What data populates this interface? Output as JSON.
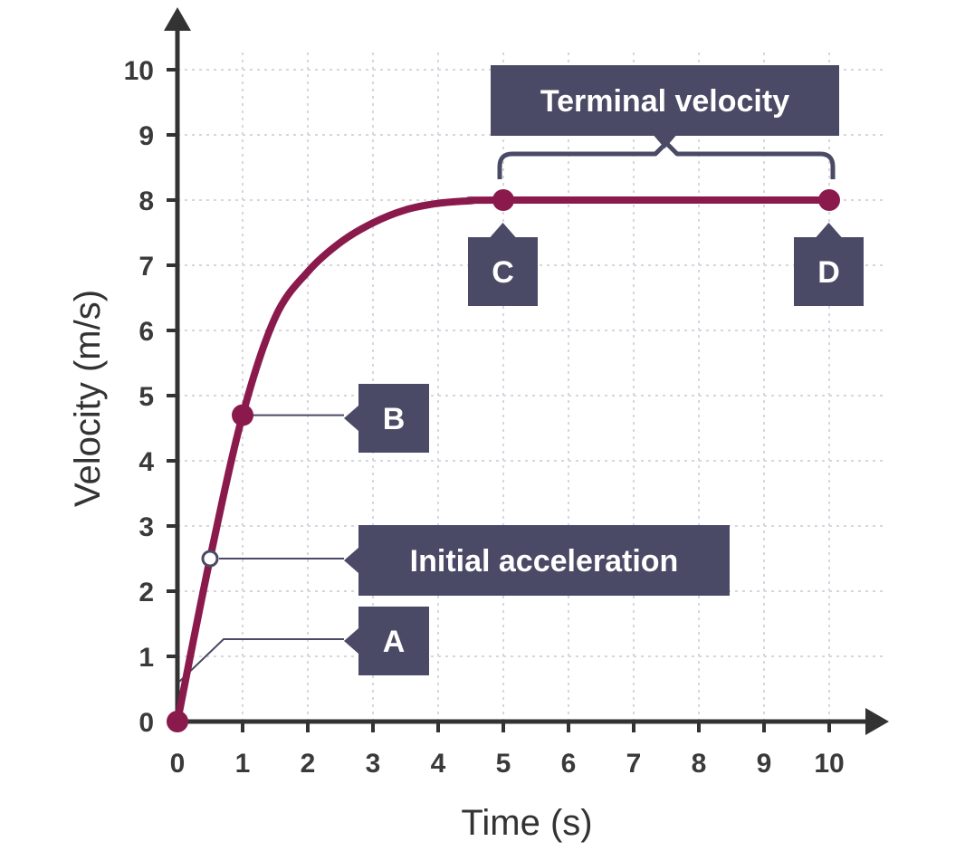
{
  "chart_data": {
    "type": "line",
    "xlabel": "Time (s)",
    "ylabel": "Velocity (m/s)",
    "xlim": [
      0,
      10
    ],
    "ylim": [
      0,
      10
    ],
    "x_ticks": [
      "0",
      "1",
      "2",
      "3",
      "4",
      "5",
      "6",
      "7",
      "8",
      "9",
      "10"
    ],
    "y_ticks": [
      "0",
      "1",
      "2",
      "3",
      "4",
      "5",
      "6",
      "7",
      "8",
      "9",
      "10"
    ],
    "grid": true,
    "series": [
      {
        "color": "#8b1a4c",
        "x": [
          0,
          0.5,
          1,
          1.5,
          2,
          2.5,
          3,
          3.5,
          4,
          4.5,
          5,
          10
        ],
        "y": [
          0,
          2.5,
          4.7,
          6.2,
          6.9,
          7.35,
          7.65,
          7.85,
          7.95,
          7.99,
          8,
          8
        ]
      }
    ],
    "markers": [
      {
        "label": "A",
        "x": 0,
        "y": 0
      },
      {
        "label": "Initial acceleration",
        "x": 0.5,
        "y": 2.5,
        "hollow": true
      },
      {
        "label": "B",
        "x": 1,
        "y": 4.7
      },
      {
        "label": "C",
        "x": 5,
        "y": 8
      },
      {
        "label": "D",
        "x": 10,
        "y": 8
      }
    ],
    "annotations": [
      {
        "text": "Terminal velocity",
        "x_start": 5,
        "x_end": 10,
        "y": 8
      }
    ],
    "colors": {
      "curve": "#8b1a4c",
      "callout": "#4a4a66",
      "axis": "#333333",
      "grid": "#d6d6e0"
    }
  }
}
